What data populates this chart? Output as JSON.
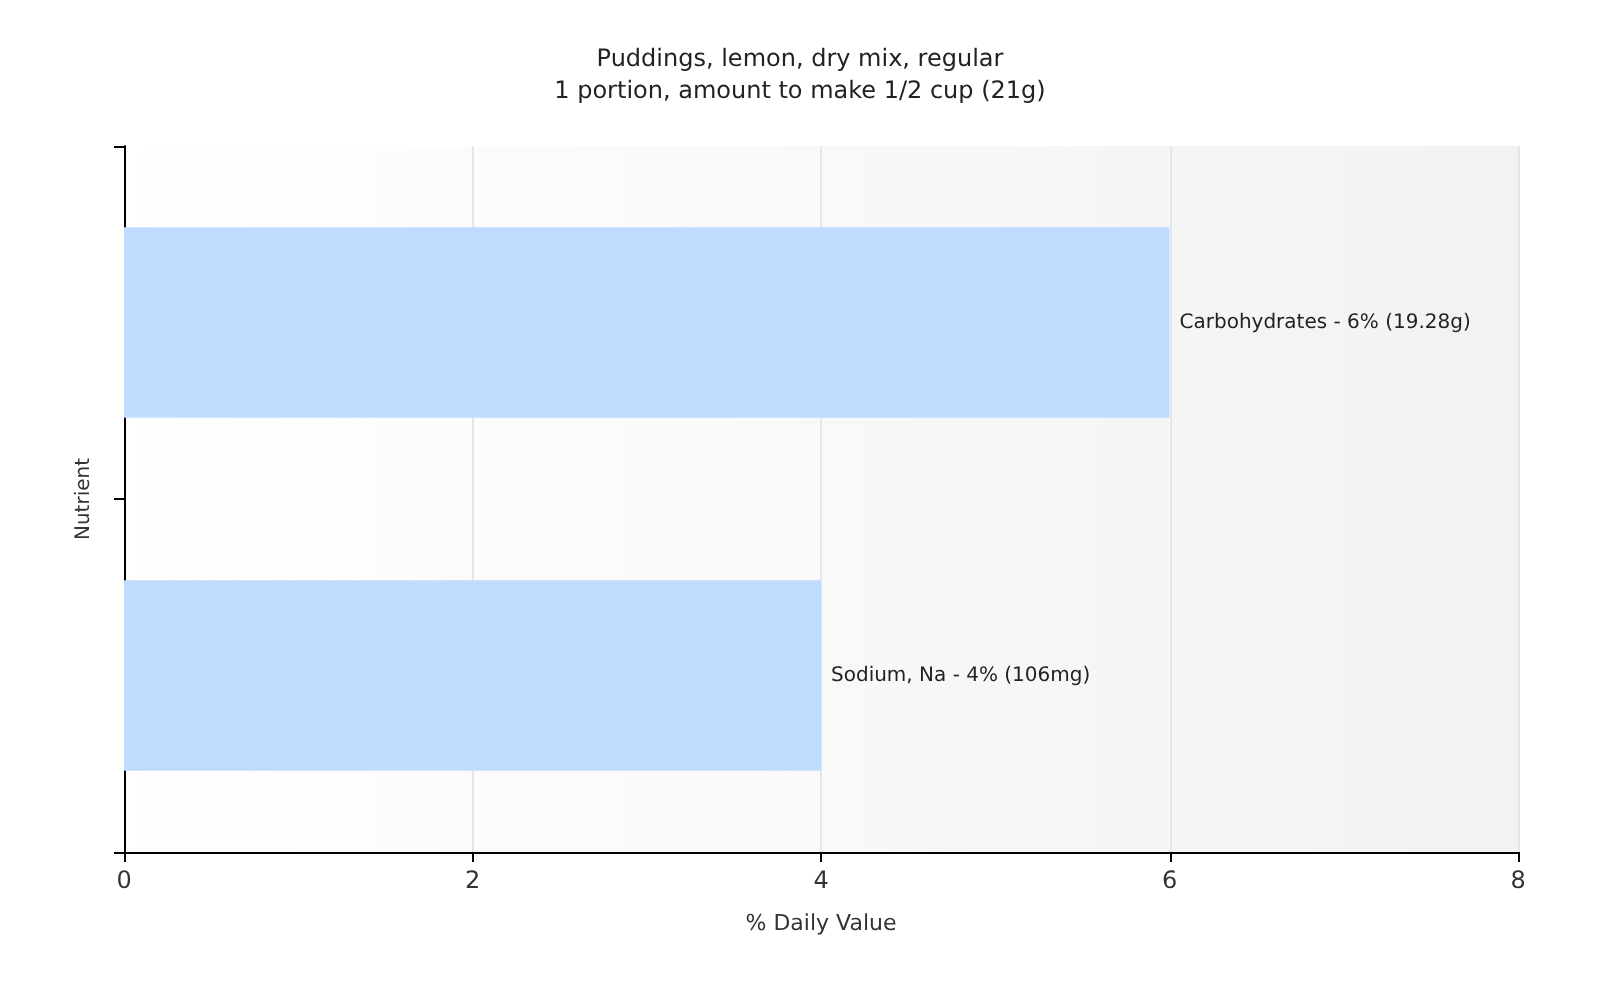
{
  "chart_data": {
    "type": "bar",
    "orientation": "horizontal",
    "title": "Puddings, lemon, dry mix, regular",
    "subtitle": "1 portion, amount to make 1/2 cup (21g)",
    "xlabel": "% Daily Value",
    "ylabel": "Nutrient",
    "categories": [
      "Carbohydrates -",
      "Sodium, Na -"
    ],
    "values": [
      6,
      4
    ],
    "value_labels": [
      "6% (19.28g)",
      "4% (106mg)"
    ],
    "color": "#bfdbfe",
    "xlim": [
      0,
      8
    ],
    "xticks": [
      0,
      2,
      4,
      6,
      8
    ],
    "grid": "x",
    "tick_labels": "x"
  }
}
